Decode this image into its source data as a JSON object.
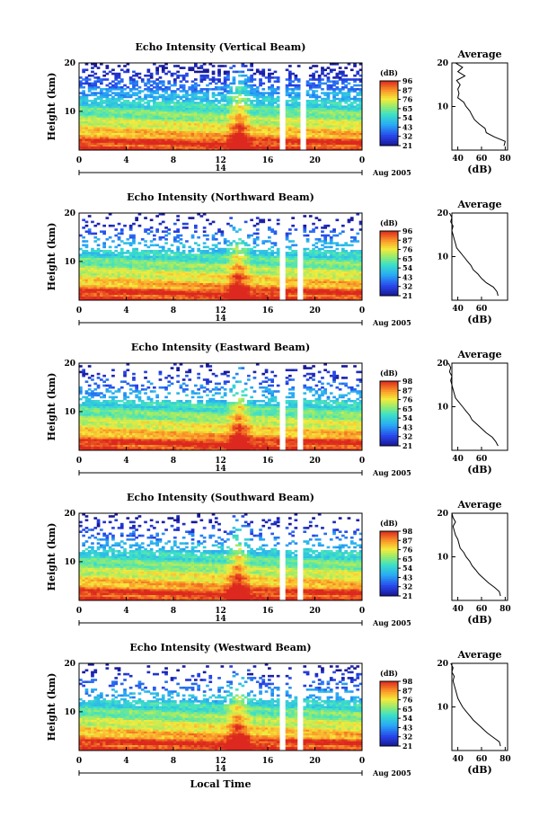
{
  "chart_data": [
    {
      "type": "heatmap",
      "title": "Echo Intensity (Vertical Beam)",
      "ylabel": "Height (km)",
      "xlim": [
        0,
        24
      ],
      "ylim": [
        2,
        20
      ],
      "x_ticks": [
        "0",
        "4",
        "8",
        "12",
        "16",
        "20",
        "0"
      ],
      "y_ticks": [
        "10",
        "20"
      ],
      "date_tick": "14",
      "date_label": "Aug 2005",
      "colorbar": {
        "unit": "(dB)",
        "range": [
          21,
          96
        ],
        "ticks": [
          "96",
          "87",
          "76",
          "65",
          "54",
          "43",
          "32",
          "21"
        ]
      },
      "gap_hours": [
        [
          17.0,
          17.6
        ],
        [
          18.7,
          19.2
        ]
      ],
      "convection_hour": 13.6,
      "average_profile": {
        "title": "Average",
        "xlabel": "(dB)",
        "ylabel": "",
        "x_ticks": [
          "40",
          "60",
          "80"
        ],
        "y_ticks": [
          "10",
          "20"
        ],
        "height_km": [
          1,
          2,
          3,
          4,
          5,
          6,
          7,
          8,
          9,
          10,
          11,
          12,
          13,
          14,
          15,
          16,
          17,
          18,
          19,
          20
        ],
        "db": [
          79,
          80,
          71,
          64,
          63,
          58,
          54,
          52,
          50,
          47,
          45,
          40,
          41,
          40,
          42,
          39,
          46,
          40,
          44,
          38
        ]
      }
    },
    {
      "type": "heatmap",
      "title": "Echo Intensity (Northward Beam)",
      "ylabel": "Height (km)",
      "xlim": [
        0,
        24
      ],
      "ylim": [
        2,
        20
      ],
      "x_ticks": [
        "0",
        "4",
        "8",
        "12",
        "16",
        "20",
        "0"
      ],
      "y_ticks": [
        "10",
        "20"
      ],
      "date_tick": "14",
      "date_label": "Aug 2005",
      "colorbar": {
        "unit": "(dB)",
        "range": [
          21,
          96
        ],
        "ticks": [
          "96",
          "87",
          "76",
          "65",
          "54",
          "43",
          "32",
          "21"
        ]
      },
      "gap_hours": [
        [
          17.0,
          17.5
        ],
        [
          18.6,
          19.1
        ]
      ],
      "convection_hour": 13.5,
      "average_profile": {
        "title": "Average",
        "xlabel": "(dB)",
        "ylabel": "",
        "x_ticks": [
          "40",
          "60"
        ],
        "y_ticks": [
          "10",
          "20"
        ],
        "height_km": [
          1,
          2,
          3,
          4,
          5,
          6,
          7,
          8,
          9,
          10,
          11,
          12,
          13,
          14,
          15,
          16,
          17,
          18,
          19,
          20
        ],
        "db": [
          74,
          73,
          70,
          64,
          60,
          57,
          53,
          51,
          48,
          45,
          42,
          39,
          38,
          37,
          36,
          35,
          36,
          34,
          35,
          33
        ]
      }
    },
    {
      "type": "heatmap",
      "title": "Echo Intensity (Eastward Beam)",
      "ylabel": "Height (km)",
      "xlim": [
        0,
        24
      ],
      "ylim": [
        2,
        20
      ],
      "x_ticks": [
        "0",
        "4",
        "8",
        "12",
        "16",
        "20",
        "0"
      ],
      "y_ticks": [
        "10",
        "20"
      ],
      "date_tick": "14",
      "date_label": "Aug 2005",
      "colorbar": {
        "unit": "(dB)",
        "range": [
          21,
          98
        ],
        "ticks": [
          "98",
          "87",
          "76",
          "65",
          "54",
          "43",
          "32",
          "21"
        ]
      },
      "gap_hours": [
        [
          17.0,
          17.5
        ],
        [
          18.5,
          19.0
        ]
      ],
      "convection_hour": 13.6,
      "average_profile": {
        "title": "Average",
        "xlabel": "(dB)",
        "ylabel": "",
        "x_ticks": [
          "40",
          "60"
        ],
        "y_ticks": [
          "10",
          "20"
        ],
        "height_km": [
          1,
          2,
          3,
          4,
          5,
          6,
          7,
          8,
          9,
          10,
          11,
          12,
          13,
          14,
          15,
          16,
          17,
          18,
          19,
          20
        ],
        "db": [
          74,
          72,
          69,
          64,
          60,
          56,
          52,
          50,
          47,
          44,
          41,
          38,
          37,
          36,
          35,
          34,
          35,
          33,
          34,
          32
        ]
      }
    },
    {
      "type": "heatmap",
      "title": "Echo Intensity (Southward Beam)",
      "ylabel": "Height (km)",
      "xlim": [
        0,
        24
      ],
      "ylim": [
        2,
        20
      ],
      "x_ticks": [
        "0",
        "4",
        "8",
        "12",
        "16",
        "20",
        "0"
      ],
      "y_ticks": [
        "10",
        "20"
      ],
      "date_tick": "14",
      "date_label": "Aug 2005",
      "colorbar": {
        "unit": "(dB)",
        "range": [
          21,
          98
        ],
        "ticks": [
          "98",
          "87",
          "76",
          "65",
          "54",
          "43",
          "32",
          "21"
        ]
      },
      "gap_hours": [
        [
          17.0,
          17.5
        ],
        [
          18.5,
          19.0
        ]
      ],
      "convection_hour": 13.5,
      "average_profile": {
        "title": "Average",
        "xlabel": "(dB)",
        "ylabel": "",
        "x_ticks": [
          "40",
          "60",
          "80"
        ],
        "y_ticks": [
          "10",
          "20"
        ],
        "height_km": [
          1,
          2,
          3,
          4,
          5,
          6,
          7,
          8,
          9,
          10,
          11,
          12,
          13,
          14,
          15,
          16,
          17,
          18,
          19,
          20
        ],
        "db": [
          76,
          75,
          71,
          66,
          62,
          58,
          55,
          52,
          50,
          47,
          45,
          42,
          41,
          40,
          38,
          37,
          36,
          38,
          36,
          35
        ]
      }
    },
    {
      "type": "heatmap",
      "title": "Echo Intensity (Westward Beam)",
      "ylabel": "Height (km)",
      "xlabel": "Local Time",
      "xlim": [
        0,
        24
      ],
      "ylim": [
        2,
        20
      ],
      "x_ticks": [
        "0",
        "4",
        "8",
        "12",
        "16",
        "20",
        "0"
      ],
      "y_ticks": [
        "10",
        "20"
      ],
      "date_tick": "14",
      "date_label": "Aug 2005",
      "colorbar": {
        "unit": "(dB)",
        "range": [
          21,
          98
        ],
        "ticks": [
          "98",
          "87",
          "76",
          "65",
          "54",
          "43",
          "32",
          "21"
        ]
      },
      "gap_hours": [
        [
          17.0,
          17.5
        ],
        [
          18.5,
          19.0
        ]
      ],
      "convection_hour": 13.5,
      "average_profile": {
        "title": "Average",
        "xlabel": "(dB)",
        "ylabel": "",
        "x_ticks": [
          "40",
          "60",
          "80"
        ],
        "y_ticks": [
          "10",
          "20"
        ],
        "height_km": [
          1,
          2,
          3,
          4,
          5,
          6,
          7,
          8,
          9,
          10,
          11,
          12,
          13,
          14,
          15,
          16,
          17,
          18,
          19,
          20
        ],
        "db": [
          76,
          75,
          70,
          65,
          61,
          57,
          53,
          50,
          47,
          44,
          42,
          40,
          39,
          38,
          37,
          36,
          37,
          35,
          36,
          34
        ]
      }
    }
  ]
}
